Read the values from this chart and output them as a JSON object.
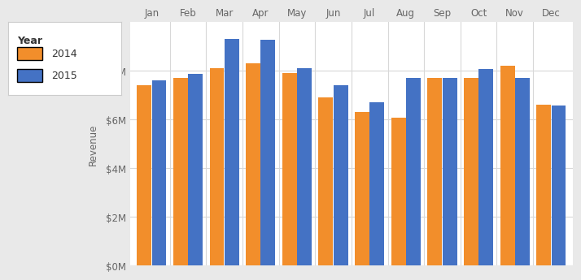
{
  "months": [
    "Jan",
    "Feb",
    "Mar",
    "Apr",
    "May",
    "Jun",
    "Jul",
    "Aug",
    "Sep",
    "Oct",
    "Nov",
    "Dec"
  ],
  "values_2014": [
    7.4,
    7.7,
    8.1,
    8.3,
    7.9,
    6.9,
    6.3,
    6.05,
    7.7,
    7.7,
    8.2,
    6.6
  ],
  "values_2015": [
    7.6,
    7.85,
    9.3,
    9.25,
    8.1,
    7.4,
    6.7,
    7.7,
    7.7,
    8.05,
    7.7,
    6.55
  ],
  "color_2014": "#F28E2B",
  "color_2015": "#4472C4",
  "ylabel": "Revenue",
  "ylim": [
    0,
    10
  ],
  "yticks": [
    0,
    2,
    4,
    6,
    8
  ],
  "ytick_labels": [
    "$0M",
    "$2M",
    "$4M",
    "$6M",
    "$8M"
  ],
  "legend_title": "Year",
  "legend_labels": [
    "2014",
    "2015"
  ],
  "bg_color": "#E9E9E9",
  "plot_bg_color": "#FFFFFF",
  "grid_color": "#D8D8D8",
  "axis_label_color": "#666666",
  "legend_text_color": "#333333"
}
